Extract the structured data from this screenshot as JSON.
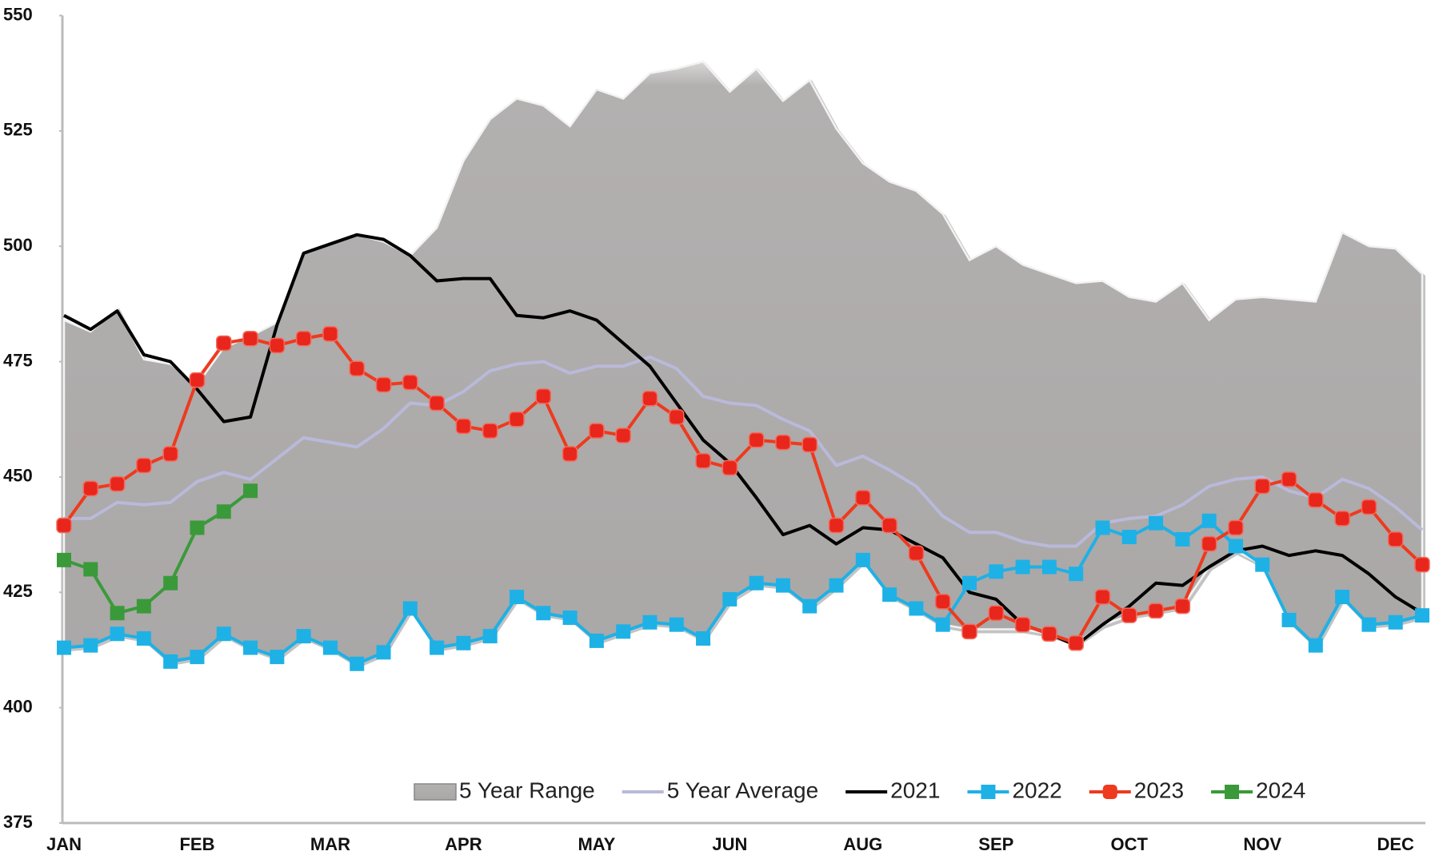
{
  "chart_data": {
    "type": "line",
    "categories": [
      "JAN",
      null,
      null,
      null,
      null,
      "FEB",
      null,
      null,
      null,
      null,
      "MAR",
      null,
      null,
      null,
      null,
      "APR",
      null,
      null,
      null,
      null,
      "MAY",
      null,
      null,
      null,
      null,
      "JUN",
      null,
      null,
      null,
      null,
      "AUG",
      null,
      null,
      null,
      null,
      "SEP",
      null,
      null,
      null,
      null,
      "OCT",
      null,
      null,
      null,
      null,
      "NOV",
      null,
      null,
      null,
      null,
      "DEC",
      null
    ],
    "ylim": [
      375,
      550
    ],
    "yticks": [
      375,
      400,
      425,
      450,
      475,
      500,
      525,
      550
    ],
    "grid": false,
    "legend": "bottom",
    "series": [
      {
        "name": "5 Year Range",
        "kind": "range",
        "color": "#b3b0b0",
        "values": [
          484,
          481.5,
          486.5,
          475.5,
          474.5,
          470,
          478,
          480.5,
          483.5,
          498.5,
          500.5,
          502.5,
          501,
          498,
          504,
          518.5,
          527.5,
          532,
          530.5,
          526,
          534,
          532,
          537.5,
          538.5,
          540,
          533.5,
          538.5,
          531.5,
          536,
          525.5,
          518,
          514,
          512,
          507,
          497,
          500,
          496,
          494,
          492,
          492.5,
          489,
          488,
          492,
          484,
          488.5,
          489,
          488.5,
          488,
          503,
          500,
          499.5,
          494
        ],
        "low": [
          413,
          413.5,
          416,
          415,
          410,
          411,
          416,
          413,
          411,
          415.5,
          413,
          409.5,
          412,
          421.5,
          413,
          414,
          415.5,
          424,
          420.5,
          419.5,
          414.5,
          416.5,
          418.5,
          418,
          415,
          423.5,
          427,
          426.5,
          422,
          426.5,
          432,
          424.5,
          421.5,
          418,
          417,
          417,
          417,
          416,
          414,
          418,
          420,
          421,
          422,
          430.5,
          434,
          431,
          419,
          413.5,
          424,
          418,
          418.5,
          420
        ]
      },
      {
        "name": "5 Year Average",
        "kind": "line",
        "color": "#b9b9da",
        "values": [
          441,
          441,
          444.5,
          444,
          444.5,
          449,
          451,
          449.5,
          454,
          458.5,
          457.5,
          456.5,
          460.5,
          466,
          465.5,
          468.5,
          473,
          474.5,
          475,
          472.5,
          474,
          474,
          476,
          473.5,
          467.5,
          466,
          465.5,
          462.5,
          460,
          452.5,
          454.5,
          451.5,
          448,
          441.5,
          438,
          438,
          436,
          435,
          435,
          440,
          441,
          441.5,
          444,
          448,
          449.5,
          450,
          447,
          445.5,
          449.5,
          447.5,
          443.5,
          438.5
        ]
      },
      {
        "name": "2021",
        "kind": "line",
        "color": "#000000",
        "values": [
          485,
          482,
          486,
          476.5,
          475,
          469,
          462,
          463,
          483,
          498.5,
          500.5,
          502.5,
          501.5,
          498,
          492.5,
          493,
          493,
          485,
          484.5,
          486,
          484,
          479,
          474,
          466,
          458,
          453,
          445.5,
          437.5,
          439.5,
          435.5,
          439,
          438.5,
          435.5,
          432.5,
          425,
          423.5,
          418,
          416,
          413.5,
          418,
          422,
          427,
          426.5,
          430.5,
          434,
          435,
          433,
          434,
          433,
          429,
          424,
          420.5
        ]
      },
      {
        "name": "2022",
        "kind": "square",
        "color": "#1eb1e6",
        "values": [
          413,
          413.5,
          416,
          415,
          410,
          411,
          416,
          413,
          411,
          415.5,
          413,
          409.5,
          412,
          421.5,
          413,
          414,
          415.5,
          424,
          420.5,
          419.5,
          414.5,
          416.5,
          418.5,
          418,
          415,
          423.5,
          427,
          426.5,
          422,
          426.5,
          432,
          424.5,
          421.5,
          418,
          427,
          429.5,
          430.5,
          430.5,
          429,
          439,
          437,
          440,
          436.5,
          440.5,
          435,
          431,
          419,
          413.5,
          424,
          418,
          418.5,
          420
        ]
      },
      {
        "name": "2023",
        "kind": "round",
        "color": "#ee3a1d",
        "values": [
          439.5,
          447.5,
          448.5,
          452.5,
          455,
          471,
          479,
          480,
          478.5,
          480,
          481,
          473.5,
          470,
          470.5,
          466,
          461,
          460,
          462.5,
          467.5,
          455,
          460,
          459,
          467,
          463,
          453.5,
          452,
          458,
          457.5,
          457,
          439.5,
          445.5,
          439.5,
          433.5,
          423,
          416.5,
          420.5,
          418,
          416,
          414,
          424,
          420,
          421,
          422,
          435.5,
          439,
          448,
          449.5,
          445,
          441,
          443.5,
          436.5,
          431
        ]
      },
      {
        "name": "2024",
        "kind": "square",
        "color": "#3a9a3a",
        "values": [
          432,
          430,
          420.5,
          422,
          427,
          439,
          442.5,
          447,
          null,
          null,
          null,
          null,
          null,
          null,
          null,
          null,
          null,
          null,
          null,
          null,
          null,
          null,
          null,
          null,
          null,
          null,
          null,
          null,
          null,
          null,
          null,
          null,
          null,
          null,
          null,
          null,
          null,
          null,
          null,
          null,
          null,
          null,
          null,
          null,
          null,
          null,
          null,
          null,
          null,
          null,
          null,
          null
        ]
      }
    ]
  }
}
